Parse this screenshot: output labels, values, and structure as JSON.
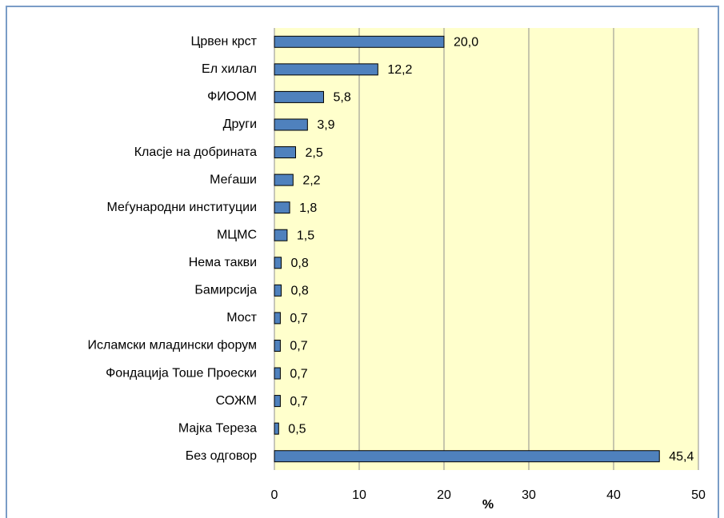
{
  "chart_data": {
    "type": "bar",
    "orientation": "horizontal",
    "categories": [
      "Црвен крст",
      "Ел хилал",
      "ФИООМ",
      "Други",
      "Класје на добрината",
      "Меѓаши",
      "Меѓународни институции",
      "МЦМС",
      "Нема такви",
      "Бамирсија",
      "Мост",
      "Исламски младински форум",
      "Фондација Тоше Проески",
      "СОЖМ",
      "Мајка Тереза",
      "Без одговор"
    ],
    "values": [
      20.0,
      12.2,
      5.8,
      3.9,
      2.5,
      2.2,
      1.8,
      1.5,
      0.8,
      0.8,
      0.7,
      0.7,
      0.7,
      0.7,
      0.5,
      45.4
    ],
    "value_labels": [
      "20,0",
      "12,2",
      "5,8",
      "3,9",
      "2,5",
      "2,2",
      "1,8",
      "1,5",
      "0,8",
      "0,8",
      "0,7",
      "0,7",
      "0,7",
      "0,7",
      "0,5",
      "45,4"
    ],
    "color": "#4f81bd",
    "xlabel": "%",
    "xlim": [
      0,
      50
    ],
    "xticks": [
      0,
      10,
      20,
      30,
      40,
      50
    ],
    "grid": true
  }
}
